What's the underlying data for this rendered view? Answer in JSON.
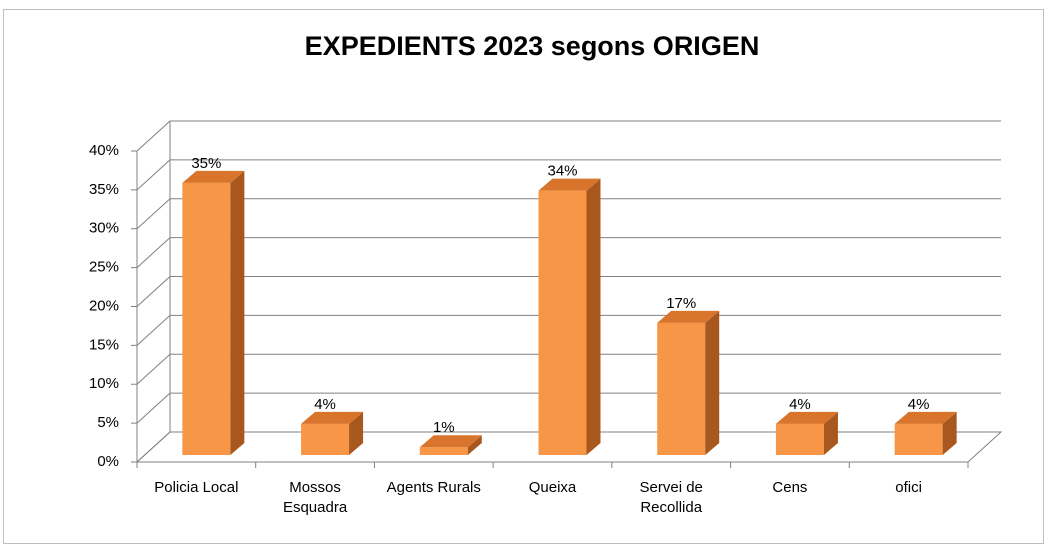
{
  "chart_data": {
    "type": "bar3d",
    "title": "EXPEDIENTS 2023 segons  ORIGEN",
    "categories": [
      "Policia Local",
      "Mossos Esquadra",
      "Agents Rurals",
      "Queixa",
      "Servei de Recollida",
      "Cens",
      "ofici"
    ],
    "values": [
      35,
      4,
      1,
      34,
      17,
      4,
      4
    ],
    "value_labels": [
      "35%",
      "4%",
      "1%",
      "34%",
      "17%",
      "4%",
      "4%"
    ],
    "color": "#f79646",
    "ylim": [
      0,
      40
    ],
    "yticks": [
      {
        "value": 0,
        "label": "0%"
      },
      {
        "value": 5,
        "label": "5%"
      },
      {
        "value": 10,
        "label": "10%"
      },
      {
        "value": 15,
        "label": "15%"
      },
      {
        "value": 20,
        "label": "20%"
      },
      {
        "value": 25,
        "label": "25%"
      },
      {
        "value": 30,
        "label": "30%"
      },
      {
        "value": 35,
        "label": "35%"
      },
      {
        "value": 40,
        "label": "40%"
      }
    ],
    "grid": true
  }
}
